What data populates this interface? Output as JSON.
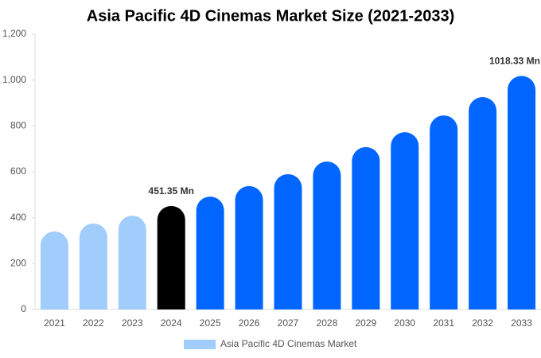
{
  "chart_data": {
    "type": "bar",
    "title": "Asia Pacific 4D Cinemas Market Size (2021-2033)",
    "categories": [
      "2021",
      "2022",
      "2023",
      "2024",
      "2025",
      "2026",
      "2027",
      "2028",
      "2029",
      "2030",
      "2031",
      "2032",
      "2033"
    ],
    "series": [
      {
        "name": "Asia Pacific 4D Cinemas Market",
        "color": "#a0cdfc",
        "values": [
          340,
          375,
          409,
          451.35,
          492,
          538,
          590,
          645,
          708,
          773,
          846,
          926,
          1018.33
        ],
        "value_labels": [
          null,
          null,
          null,
          "451.35 Mn",
          null,
          null,
          null,
          null,
          null,
          null,
          null,
          null,
          "1018.33 Mn"
        ],
        "colors": [
          "#a0cdfc",
          "#a0cdfc",
          "#a0cdfc",
          "#000000",
          "#0066ff",
          "#0066ff",
          "#0066ff",
          "#0066ff",
          "#0066ff",
          "#0066ff",
          "#0066ff",
          "#0066ff",
          "#0066ff"
        ]
      }
    ],
    "ylim": [
      0,
      1200
    ],
    "yticks": [
      0,
      200,
      400,
      600,
      800,
      {
        "value": 1000,
        "label": "1,000"
      },
      {
        "value": 1200,
        "label": "1,200"
      }
    ],
    "legend": "bottom"
  }
}
